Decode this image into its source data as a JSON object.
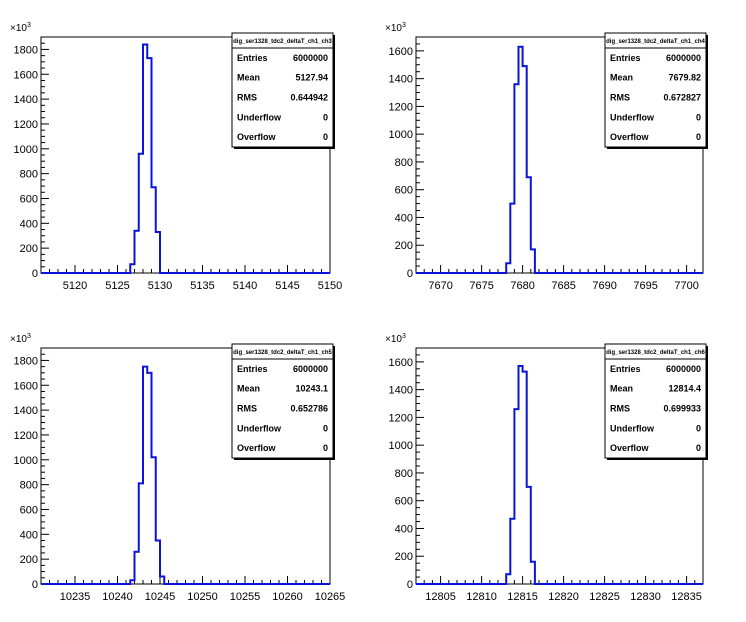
{
  "chart_data": [
    {
      "type": "bar",
      "histogram": true,
      "title": "dig_ser1328_tdc2_deltaT_ch1_ch3",
      "xlim": [
        5116,
        5150
      ],
      "ylim": [
        0,
        1900
      ],
      "y_multiplier_label": "×10",
      "y_multiplier_exp": "3",
      "x_ticks": [
        5120,
        5125,
        5130,
        5135,
        5140,
        5145,
        5150
      ],
      "y_ticks": [
        0,
        200,
        400,
        600,
        800,
        1000,
        1200,
        1400,
        1600,
        1800
      ],
      "bin_width": 0.5,
      "x": [
        5126.0,
        5126.5,
        5127.0,
        5127.5,
        5128.0,
        5128.5,
        5129.0,
        5129.5
      ],
      "values": [
        0,
        70,
        340,
        960,
        1840,
        1730,
        690,
        330
      ],
      "line_color": "#0a14d8",
      "stats": {
        "Entries": "6000000",
        "Mean": "5127.94",
        "RMS": "0.644942",
        "Underflow": "0",
        "Overflow": "0"
      }
    },
    {
      "type": "bar",
      "histogram": true,
      "title": "dig_ser1328_tdc2_deltaT_ch1_ch4",
      "xlim": [
        7667,
        7702
      ],
      "ylim": [
        0,
        1700
      ],
      "y_multiplier_label": "×10",
      "y_multiplier_exp": "3",
      "x_ticks": [
        7670,
        7675,
        7680,
        7685,
        7690,
        7695,
        7700
      ],
      "y_ticks": [
        0,
        200,
        400,
        600,
        800,
        1000,
        1200,
        1400,
        1600
      ],
      "bin_width": 0.5,
      "x": [
        7678.0,
        7678.5,
        7679.0,
        7679.5,
        7680.0,
        7680.5,
        7681.0
      ],
      "values": [
        70,
        500,
        1360,
        1630,
        1490,
        690,
        170
      ],
      "line_color": "#0a14d8",
      "stats": {
        "Entries": "6000000",
        "Mean": "7679.82",
        "RMS": "0.672827",
        "Underflow": "0",
        "Overflow": "0"
      }
    },
    {
      "type": "bar",
      "histogram": true,
      "title": "dig_ser1328_tdc2_deltaT_ch1_ch5",
      "xlim": [
        10231,
        10265
      ],
      "ylim": [
        0,
        1900
      ],
      "y_multiplier_label": "×10",
      "y_multiplier_exp": "3",
      "x_ticks": [
        10235,
        10240,
        10245,
        10250,
        10255,
        10260,
        10265
      ],
      "y_ticks": [
        0,
        200,
        400,
        600,
        800,
        1000,
        1200,
        1400,
        1600,
        1800
      ],
      "bin_width": 0.5,
      "x": [
        10241.5,
        10242.0,
        10242.5,
        10243.0,
        10243.5,
        10244.0,
        10244.5,
        10245.0
      ],
      "values": [
        30,
        260,
        810,
        1750,
        1700,
        1020,
        350,
        60
      ],
      "line_color": "#0a14d8",
      "stats": {
        "Entries": "6000000",
        "Mean": "10243.1",
        "RMS": "0.652786",
        "Underflow": "0",
        "Overflow": "0"
      }
    },
    {
      "type": "bar",
      "histogram": true,
      "title": "dig_ser1328_tdc2_deltaT_ch1_ch6",
      "xlim": [
        12802,
        12837
      ],
      "ylim": [
        0,
        1700
      ],
      "y_multiplier_label": "×10",
      "y_multiplier_exp": "3",
      "x_ticks": [
        12805,
        12810,
        12815,
        12820,
        12825,
        12830,
        12835
      ],
      "y_ticks": [
        0,
        200,
        400,
        600,
        800,
        1000,
        1200,
        1400,
        1600
      ],
      "bin_width": 0.5,
      "x": [
        12813.0,
        12813.5,
        12814.0,
        12814.5,
        12815.0,
        12815.5,
        12816.0
      ],
      "values": [
        70,
        470,
        1260,
        1570,
        1530,
        700,
        160
      ],
      "line_color": "#0a14d8",
      "stats": {
        "Entries": "6000000",
        "Mean": "12814.4",
        "RMS": "0.699933",
        "Underflow": "0",
        "Overflow": "0"
      }
    }
  ]
}
